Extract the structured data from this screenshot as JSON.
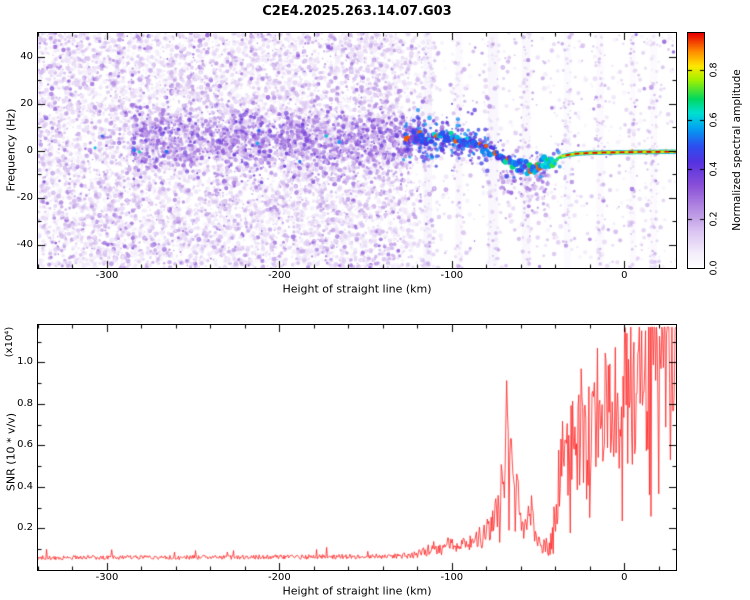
{
  "title": "C2E4.2025.263.14.07.G03",
  "chart_data": [
    {
      "type": "heatmap",
      "description": "Radio occultation spectrogram: normalized spectral amplitude vs straight-line height and frequency; coherent signal band emerges near -120 km around +5 Hz, dips to -8 Hz near -55 km, then flattens just below 0 Hz toward +30 km",
      "xlabel": "Height of straight line (km)",
      "ylabel": "Frequency (Hz)",
      "xlim": [
        -340,
        30
      ],
      "ylim": [
        -50,
        50
      ],
      "x_ticks": [
        -300,
        -200,
        -100,
        0
      ],
      "x_minor_step": 20,
      "y_ticks": [
        40,
        20,
        0,
        -20,
        -40
      ],
      "y_minor_step": 10,
      "colorbar": {
        "label": "Normalized spectral amplitude",
        "ticks": [
          0.0,
          0.2,
          0.4,
          0.6,
          0.8
        ],
        "range": [
          0,
          0.95
        ]
      },
      "colormap_stops": [
        [
          0.0,
          "#ffffff"
        ],
        [
          0.06,
          "#f4eefb"
        ],
        [
          0.15,
          "#dcc6f2"
        ],
        [
          0.25,
          "#b48ce2"
        ],
        [
          0.35,
          "#8a50d8"
        ],
        [
          0.45,
          "#5532e0"
        ],
        [
          0.52,
          "#2b50f0"
        ],
        [
          0.6,
          "#00a6f0"
        ],
        [
          0.66,
          "#00e0d2"
        ],
        [
          0.72,
          "#00d860"
        ],
        [
          0.8,
          "#a0f000"
        ],
        [
          0.86,
          "#ffe800"
        ],
        [
          0.92,
          "#ff9000"
        ],
        [
          1.0,
          "#e80000"
        ]
      ],
      "noise": {
        "speckle_count": 15000,
        "dense_until": -135,
        "fade_until": -105,
        "sparse_accept": 0.1,
        "band_count": 1800,
        "band_center_hz": 4,
        "band_sigma_hz": 7,
        "band_x_range": [
          -285,
          -123
        ]
      },
      "streaks": [
        {
          "h": -114,
          "w": 5,
          "a": 0.1
        },
        {
          "h": -96,
          "w": 4,
          "a": 0.07
        },
        {
          "h": -76,
          "w": 6,
          "a": 0.09
        },
        {
          "h": -57,
          "w": 5,
          "a": 0.08
        },
        {
          "h": -33,
          "w": 4,
          "a": 0.06
        },
        {
          "h": -14,
          "w": 4,
          "a": 0.05
        },
        {
          "h": 5,
          "w": 3,
          "a": 0.05
        },
        {
          "h": 17,
          "w": 4,
          "a": 0.05
        }
      ],
      "signal_trace": {
        "x": [
          -126,
          -120,
          -114,
          -108,
          -102,
          -96,
          -90,
          -84,
          -78,
          -72,
          -66,
          -60,
          -54,
          -48,
          -44,
          -40,
          -36,
          -32,
          -28,
          -24,
          -20,
          -15,
          -10,
          -5,
          0,
          5,
          10,
          15,
          20,
          25,
          30
        ],
        "freq": [
          5,
          6,
          4,
          6,
          5,
          4,
          3,
          2,
          0,
          -2,
          -5,
          -7,
          -8,
          -6,
          -5,
          -4,
          -2.5,
          -1.8,
          -1.4,
          -1.2,
          -1,
          -1,
          -0.8,
          -0.8,
          -0.7,
          -0.7,
          -0.6,
          -0.6,
          -0.6,
          -0.5,
          -0.5
        ],
        "amp": [
          0.45,
          0.5,
          0.5,
          0.55,
          0.5,
          0.55,
          0.55,
          0.5,
          0.55,
          0.5,
          0.55,
          0.55,
          0.6,
          0.6,
          0.65,
          0.7,
          0.75,
          0.8,
          0.85,
          0.88,
          0.9,
          0.92,
          0.94,
          0.95,
          0.96,
          0.96,
          0.97,
          0.97,
          0.97,
          0.97,
          0.97
        ]
      }
    },
    {
      "type": "line",
      "xlabel": "Height of straight line (km)",
      "ylabel": "SNR (10 * v/v)",
      "scale_note": "(x10⁴)",
      "xlim": [
        -340,
        30
      ],
      "ylim": [
        0,
        1.18
      ],
      "x_ticks": [
        -300,
        -200,
        -100,
        0
      ],
      "x_minor_step": 20,
      "y_ticks": [
        0.2,
        0.4,
        0.6,
        0.8,
        1.0
      ],
      "y_minor_step": 0.1,
      "line_color": "#ff2222",
      "envelope": {
        "x": [
          -340,
          -300,
          -260,
          -220,
          -180,
          -150,
          -130,
          -120,
          -115,
          -110,
          -106,
          -102,
          -98,
          -94,
          -90,
          -86,
          -82,
          -78,
          -75,
          -72,
          -70,
          -68,
          -66,
          -64,
          -62,
          -60,
          -58,
          -56,
          -54,
          -52,
          -50,
          -48,
          -46,
          -44,
          -42,
          -40,
          -38,
          -36,
          -34,
          -32,
          -30,
          -28,
          -26,
          -24,
          -22,
          -20,
          -18,
          -16,
          -14,
          -12,
          -10,
          -8,
          -6,
          -4,
          -2,
          0,
          2,
          4,
          6,
          8,
          10,
          12,
          14,
          16,
          18,
          20,
          22,
          24,
          26,
          28,
          30
        ],
        "y": [
          0.06,
          0.06,
          0.06,
          0.062,
          0.063,
          0.065,
          0.068,
          0.075,
          0.09,
          0.11,
          0.1,
          0.13,
          0.12,
          0.14,
          0.13,
          0.15,
          0.16,
          0.2,
          0.24,
          0.38,
          0.55,
          0.7,
          0.52,
          0.6,
          0.38,
          0.22,
          0.17,
          0.24,
          0.28,
          0.2,
          0.13,
          0.11,
          0.12,
          0.11,
          0.13,
          0.28,
          0.42,
          0.5,
          0.58,
          0.45,
          0.65,
          0.5,
          0.62,
          0.75,
          0.55,
          0.72,
          0.6,
          0.8,
          0.68,
          0.78,
          0.88,
          0.72,
          0.82,
          0.68,
          0.78,
          0.88,
          0.82,
          0.92,
          0.78,
          0.95,
          0.88,
          1.0,
          0.92,
          0.98,
          1.05,
          0.98,
          1.05,
          1.08,
          1.02,
          1.08,
          1.12
        ]
      },
      "jitter_profile": [
        {
          "until": -130,
          "j": 0.18
        },
        {
          "until": -85,
          "j": 0.28
        },
        {
          "until": -45,
          "j": 0.35
        },
        {
          "until": 31,
          "j": 0.42
        }
      ]
    }
  ]
}
